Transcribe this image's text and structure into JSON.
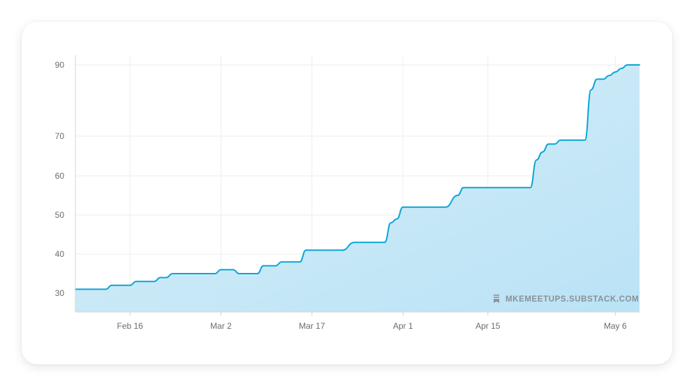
{
  "chart_data": {
    "type": "area",
    "x_tick_labels": [
      "Feb 16",
      "Mar 2",
      "Mar 17",
      "Apr 1",
      "Apr 15",
      "May 6"
    ],
    "y_tick_labels": [
      "30",
      "40",
      "50",
      "60",
      "70",
      "90"
    ],
    "y_ticks": [
      30,
      40,
      50,
      60,
      70,
      90
    ],
    "ylim": [
      25,
      92
    ],
    "grid": true,
    "colors": {
      "line": "#0aa5d6",
      "fill": "#bfe6f6"
    },
    "watermark": "MKEMEETUPS.SUBSTACK.COM",
    "series": [
      {
        "x": [
          "2024-02-07",
          "2024-02-12",
          "2024-02-13",
          "2024-02-16",
          "2024-02-17",
          "2024-02-20",
          "2024-02-21",
          "2024-02-22",
          "2024-02-23",
          "2024-02-24",
          "2024-03-01",
          "2024-03-02",
          "2024-03-04",
          "2024-03-05",
          "2024-03-08",
          "2024-03-09",
          "2024-03-11",
          "2024-03-12",
          "2024-03-15",
          "2024-03-16",
          "2024-03-22",
          "2024-03-24",
          "2024-03-29",
          "2024-03-30",
          "2024-03-31",
          "2024-04-01",
          "2024-04-08",
          "2024-04-10",
          "2024-04-11",
          "2024-04-22",
          "2024-04-23",
          "2024-04-24",
          "2024-04-25",
          "2024-04-26",
          "2024-04-27",
          "2024-05-01",
          "2024-05-02",
          "2024-05-03",
          "2024-05-04",
          "2024-05-05",
          "2024-05-06",
          "2024-05-07",
          "2024-05-08",
          "2024-05-09",
          "2024-05-10"
        ],
        "y": [
          31,
          31,
          32,
          32,
          33,
          33,
          34,
          34,
          35,
          35,
          35,
          36,
          36,
          35,
          35,
          37,
          37,
          38,
          38,
          41,
          41,
          43,
          43,
          48,
          49,
          52,
          52,
          55,
          57,
          57,
          64,
          66,
          68,
          68,
          69,
          69,
          83,
          86,
          86,
          87,
          88,
          89,
          90,
          90,
          90
        ]
      }
    ]
  }
}
